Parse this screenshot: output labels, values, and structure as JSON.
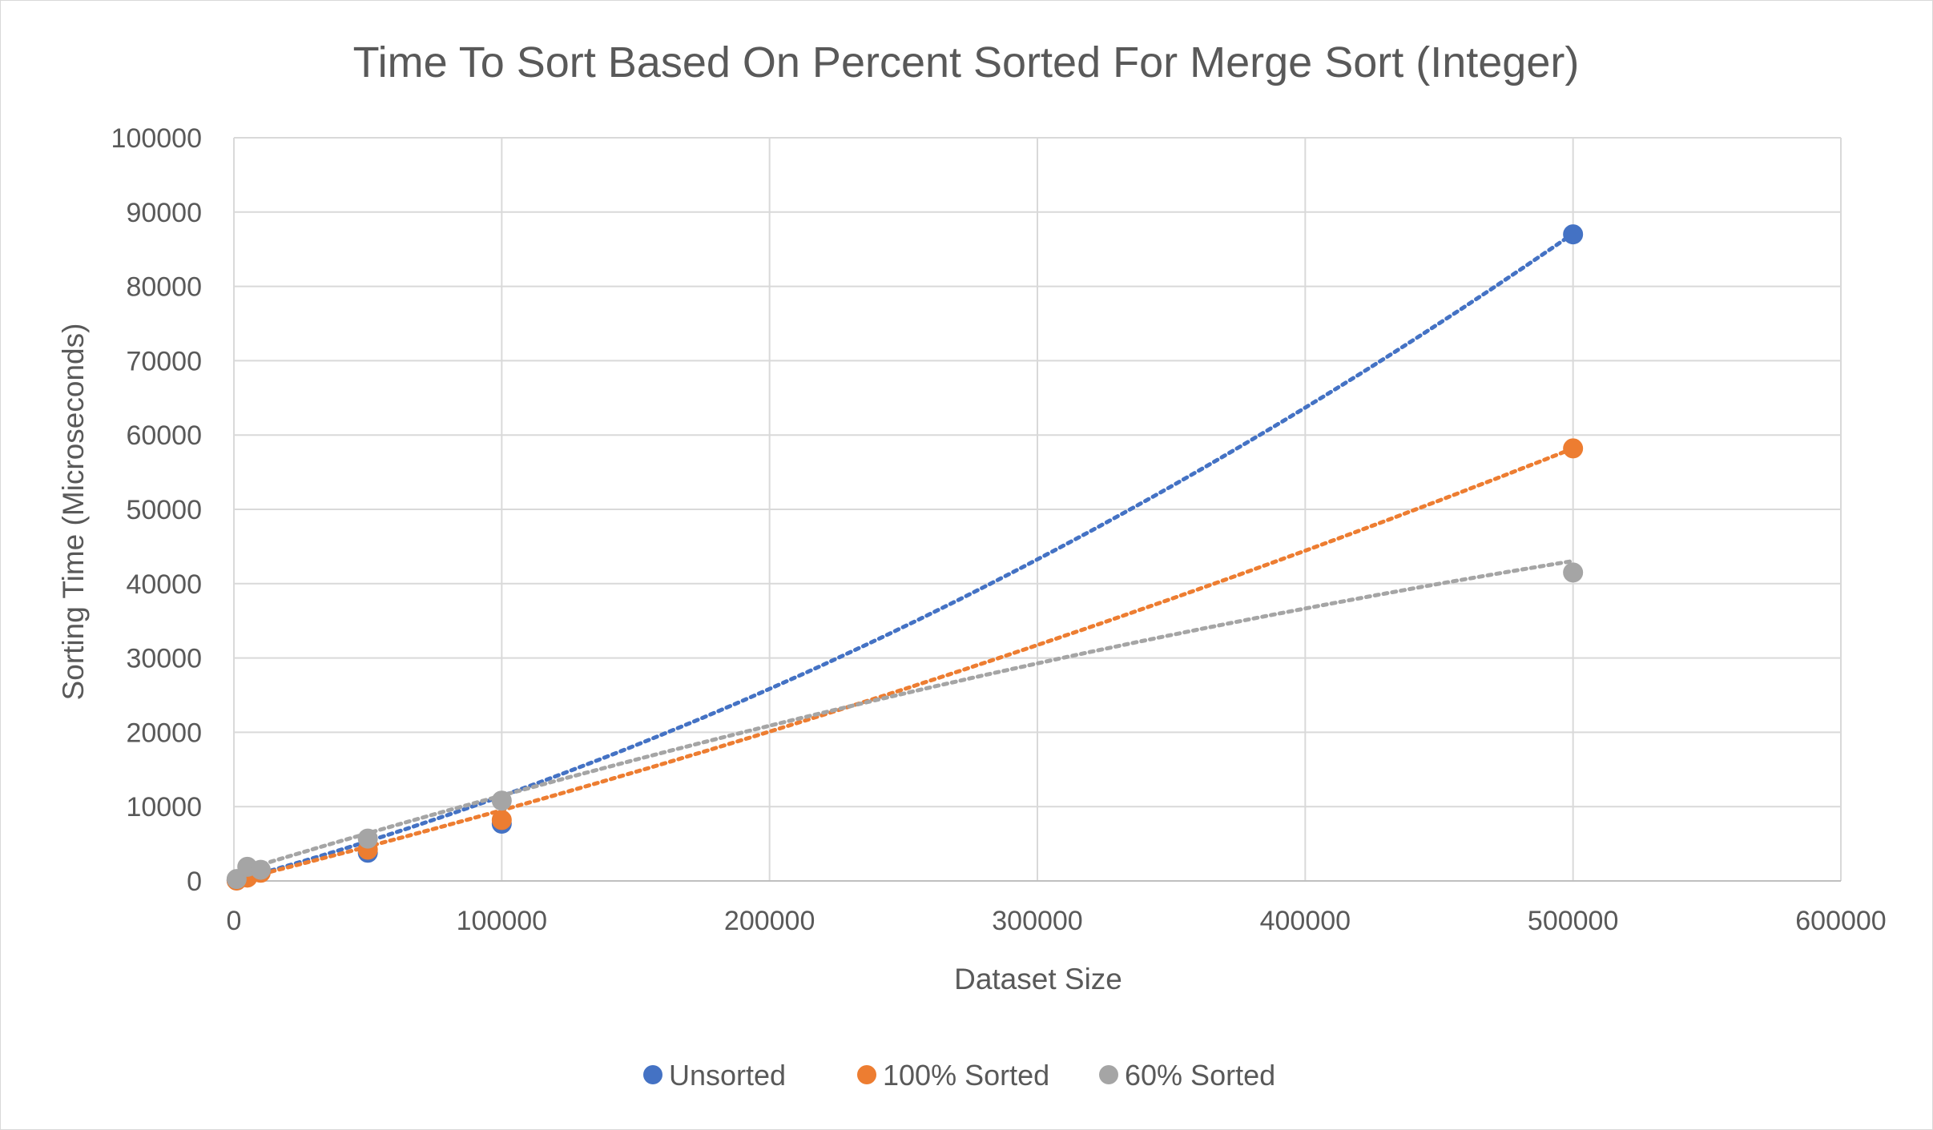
{
  "chart_data": {
    "type": "scatter",
    "title": "Time To Sort Based On Percent Sorted For Merge Sort (Integer)",
    "xlabel": "Dataset Size",
    "ylabel": "Sorting Time (Microseconds)",
    "xlim": [
      0,
      600000
    ],
    "ylim": [
      0,
      100000
    ],
    "x_ticks": [
      "0",
      "100000",
      "200000",
      "300000",
      "400000",
      "500000",
      "600000"
    ],
    "y_ticks": [
      "0",
      "10000",
      "20000",
      "30000",
      "40000",
      "50000",
      "60000",
      "70000",
      "80000",
      "90000",
      "100000"
    ],
    "grid": true,
    "legend_position": "bottom",
    "trendline": "dotted",
    "series": [
      {
        "name": "Unsorted",
        "color": "#4472C4",
        "points": [
          [
            1000,
            80
          ],
          [
            5000,
            700
          ],
          [
            10000,
            1300
          ],
          [
            50000,
            3800
          ],
          [
            100000,
            7700
          ],
          [
            500000,
            87000
          ]
        ],
        "trend_coeffs": [
          1.5e-07,
          0.0992,
          0
        ]
      },
      {
        "name": "100% Sorted",
        "color": "#ED7D31",
        "points": [
          [
            1000,
            50
          ],
          [
            5000,
            450
          ],
          [
            10000,
            1100
          ],
          [
            50000,
            4200
          ],
          [
            100000,
            8200
          ],
          [
            500000,
            58200
          ]
        ],
        "trend_coeffs": [
          5.3e-08,
          0.0899,
          0
        ]
      },
      {
        "name": "60% Sorted",
        "color": "#A5A5A5",
        "points": [
          [
            1000,
            250
          ],
          [
            5000,
            1900
          ],
          [
            10000,
            1500
          ],
          [
            50000,
            5700
          ],
          [
            100000,
            10800
          ],
          [
            500000,
            41500
          ]
        ],
        "trend_coeffs": [
          -5e-08,
          0.1089,
          1100
        ]
      }
    ]
  }
}
